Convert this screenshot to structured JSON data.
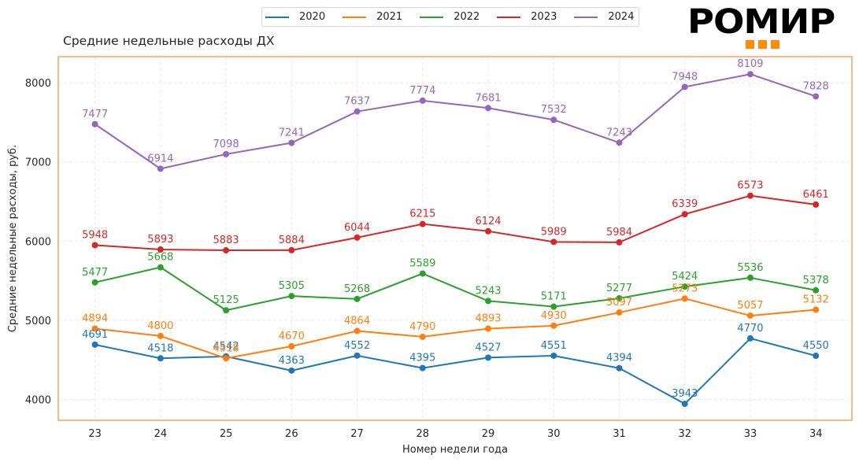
{
  "header": {
    "logo_text": "РОМИР",
    "logo_accent": "#ff8c00"
  },
  "chart_data": {
    "type": "line",
    "title": "Средние недельные расходы ДХ",
    "xlabel": "Номер недели года",
    "ylabel": "Средние недельные расходы, руб.",
    "x": [
      23,
      24,
      25,
      26,
      27,
      28,
      29,
      30,
      31,
      32,
      33,
      34
    ],
    "xticks": [
      "23",
      "24",
      "25",
      "26",
      "27",
      "28",
      "29",
      "30",
      "31",
      "32",
      "33",
      "34"
    ],
    "yticks": [
      4000,
      5000,
      6000,
      7000,
      8000
    ],
    "xlim": [
      22.44,
      34.55
    ],
    "ylim": [
      3735,
      8330
    ],
    "grid": true,
    "legend_position": "top-center",
    "frame_color": "#f28e2b",
    "series": [
      {
        "name": "2020",
        "color": "#1f77b4",
        "values": [
          4691,
          4518,
          4542,
          4363,
          4552,
          4395,
          4527,
          4551,
          4394,
          3943,
          4770,
          4550
        ]
      },
      {
        "name": "2021",
        "color": "#ff7f0e",
        "values": [
          4894,
          4800,
          4518,
          4670,
          4864,
          4790,
          4893,
          4930,
          5097,
          5273,
          5057,
          5132
        ]
      },
      {
        "name": "2022",
        "color": "#2ca02c",
        "values": [
          5477,
          5668,
          5125,
          5305,
          5268,
          5589,
          5243,
          5171,
          5277,
          5424,
          5536,
          5378
        ]
      },
      {
        "name": "2023",
        "color": "#d62728",
        "values": [
          5948,
          5893,
          5883,
          5884,
          6044,
          6215,
          6124,
          5989,
          5984,
          6339,
          6573,
          6461
        ]
      },
      {
        "name": "2024",
        "color": "#9467bd",
        "values": [
          7477,
          6914,
          7098,
          7241,
          7637,
          7774,
          7681,
          7532,
          7243,
          7948,
          8109,
          7828
        ]
      }
    ]
  }
}
